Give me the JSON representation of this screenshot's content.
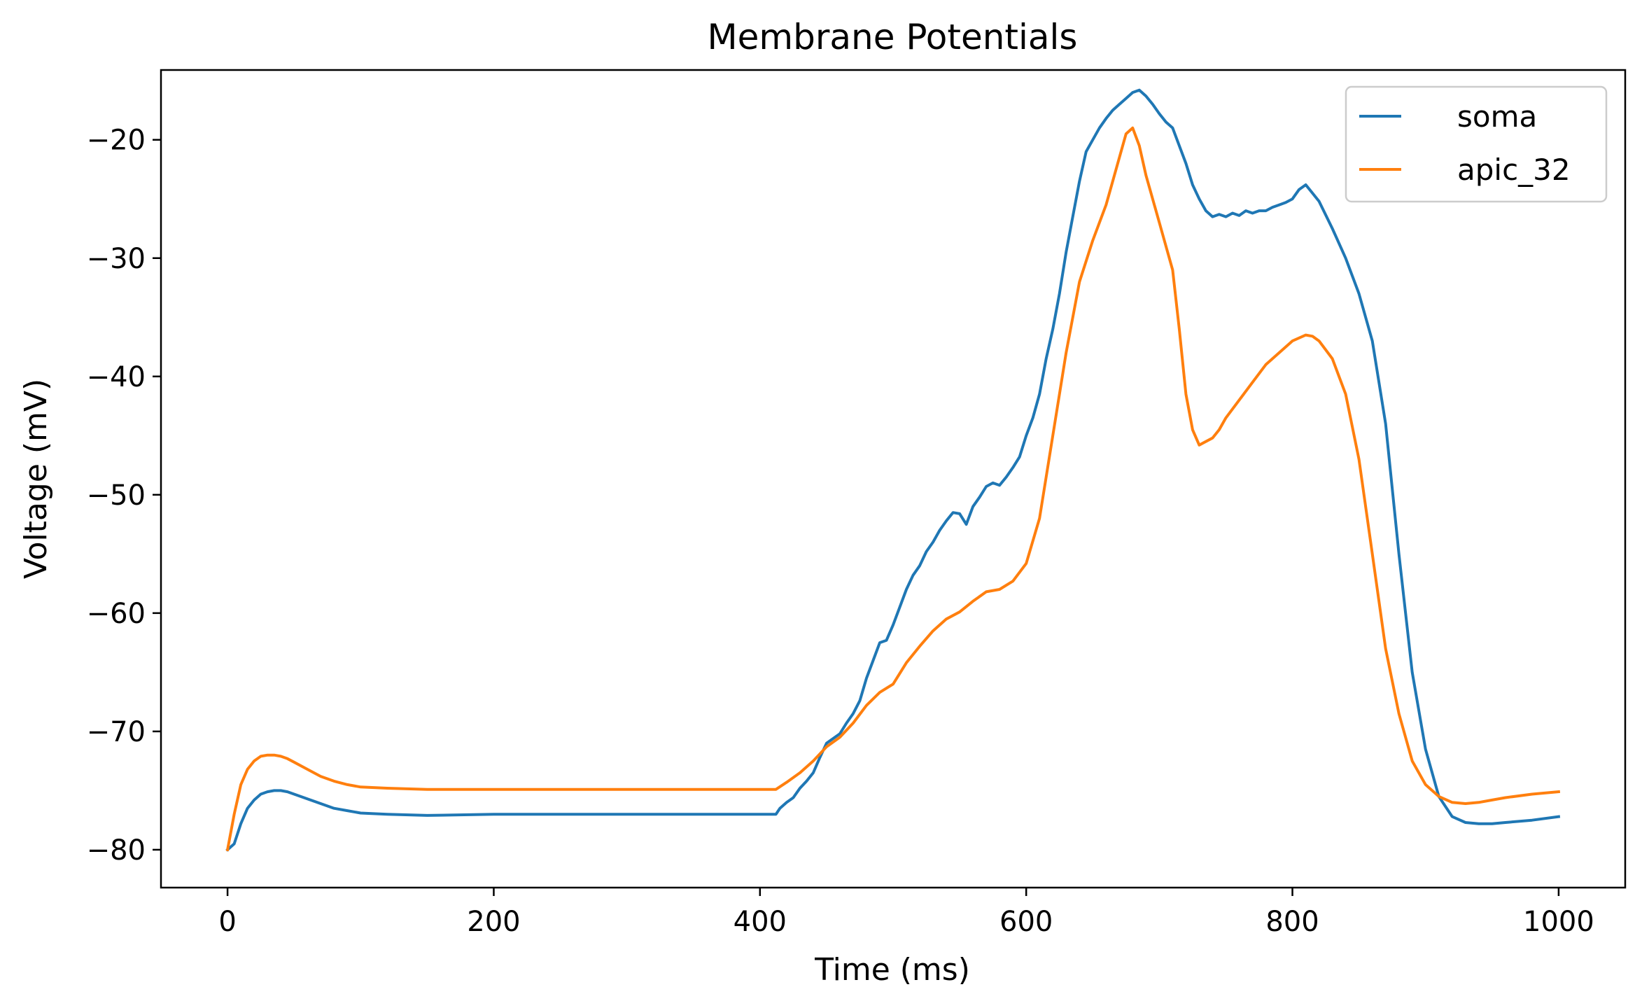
{
  "chart_data": {
    "type": "line",
    "title": "Membrane Potentials",
    "xlabel": "Time (ms)",
    "ylabel": "Voltage (mV)",
    "xlim": [
      -50,
      1050
    ],
    "ylim": [
      -83.2,
      -14.1
    ],
    "xticks": [
      0,
      200,
      400,
      600,
      800,
      1000
    ],
    "xtick_labels": [
      "0",
      "200",
      "400",
      "600",
      "800",
      "1000"
    ],
    "yticks": [
      -80,
      -70,
      -60,
      -50,
      -40,
      -30,
      -20
    ],
    "ytick_labels": [
      "−80",
      "−70",
      "−60",
      "−50",
      "−40",
      "−30",
      "−20"
    ],
    "grid": false,
    "legend_position": "top-right",
    "series": [
      {
        "name": "soma",
        "color": "#1f77b4",
        "x": [
          0,
          5,
          10,
          15,
          20,
          25,
          30,
          35,
          40,
          45,
          50,
          60,
          70,
          80,
          90,
          100,
          120,
          150,
          200,
          250,
          300,
          350,
          400,
          412,
          415,
          420,
          425,
          430,
          435,
          440,
          445,
          450,
          455,
          460,
          465,
          470,
          475,
          480,
          485,
          490,
          495,
          500,
          505,
          510,
          515,
          520,
          525,
          530,
          535,
          540,
          545,
          550,
          555,
          560,
          565,
          570,
          575,
          580,
          585,
          590,
          595,
          600,
          605,
          610,
          615,
          620,
          625,
          630,
          635,
          640,
          645,
          650,
          655,
          660,
          665,
          670,
          675,
          680,
          685,
          690,
          695,
          700,
          705,
          710,
          715,
          720,
          725,
          730,
          735,
          740,
          745,
          750,
          755,
          760,
          765,
          770,
          775,
          780,
          785,
          790,
          795,
          800,
          805,
          810,
          815,
          820,
          830,
          840,
          850,
          860,
          870,
          880,
          890,
          900,
          910,
          920,
          930,
          940,
          950,
          960,
          980,
          1000
        ],
        "values": [
          -80.0,
          -79.5,
          -77.8,
          -76.5,
          -75.8,
          -75.3,
          -75.1,
          -75.0,
          -75.0,
          -75.1,
          -75.3,
          -75.7,
          -76.1,
          -76.5,
          -76.7,
          -76.9,
          -77.0,
          -77.1,
          -77.0,
          -77.0,
          -77.0,
          -77.0,
          -77.0,
          -77.0,
          -76.5,
          -76.0,
          -75.6,
          -74.8,
          -74.2,
          -73.5,
          -72.2,
          -71.0,
          -70.6,
          -70.2,
          -69.3,
          -68.5,
          -67.4,
          -65.5,
          -64.0,
          -62.5,
          -62.3,
          -61.0,
          -59.5,
          -58.0,
          -56.8,
          -56.0,
          -54.8,
          -54.0,
          -53.0,
          -52.2,
          -51.5,
          -51.6,
          -52.5,
          -51.0,
          -50.2,
          -49.3,
          -49.0,
          -49.2,
          -48.5,
          -47.7,
          -46.8,
          -45.0,
          -43.5,
          -41.5,
          -38.5,
          -36.0,
          -33.0,
          -29.5,
          -26.5,
          -23.5,
          -21.0,
          -20.0,
          -19.0,
          -18.2,
          -17.5,
          -17.0,
          -16.5,
          -16.0,
          -15.8,
          -16.3,
          -17.0,
          -17.8,
          -18.5,
          -19.0,
          -20.5,
          -22.0,
          -23.8,
          -25.0,
          -26.0,
          -26.5,
          -26.3,
          -26.5,
          -26.2,
          -26.4,
          -26.0,
          -26.2,
          -26.0,
          -26.0,
          -25.7,
          -25.5,
          -25.3,
          -25.0,
          -24.2,
          -23.8,
          -24.5,
          -25.2,
          -27.5,
          -30.0,
          -33.0,
          -37.0,
          -44.0,
          -55.0,
          -65.0,
          -71.5,
          -75.5,
          -77.2,
          -77.7,
          -77.8,
          -77.8,
          -77.7,
          -77.5,
          -77.2
        ]
      },
      {
        "name": "apic_32",
        "color": "#ff7f0e",
        "x": [
          0,
          5,
          10,
          15,
          20,
          25,
          30,
          35,
          40,
          45,
          50,
          60,
          70,
          80,
          90,
          100,
          120,
          150,
          200,
          250,
          300,
          350,
          400,
          412,
          420,
          430,
          440,
          450,
          460,
          470,
          480,
          490,
          500,
          510,
          520,
          530,
          540,
          550,
          560,
          570,
          580,
          590,
          600,
          610,
          620,
          630,
          640,
          650,
          660,
          665,
          670,
          675,
          680,
          685,
          690,
          700,
          710,
          715,
          720,
          725,
          730,
          740,
          745,
          750,
          760,
          770,
          780,
          790,
          800,
          810,
          815,
          820,
          830,
          840,
          850,
          860,
          870,
          880,
          890,
          900,
          910,
          920,
          930,
          940,
          950,
          960,
          980,
          1000
        ],
        "values": [
          -80.0,
          -77.0,
          -74.5,
          -73.2,
          -72.5,
          -72.1,
          -72.0,
          -72.0,
          -72.1,
          -72.3,
          -72.6,
          -73.2,
          -73.8,
          -74.2,
          -74.5,
          -74.7,
          -74.8,
          -74.9,
          -74.9,
          -74.9,
          -74.9,
          -74.9,
          -74.9,
          -74.9,
          -74.3,
          -73.5,
          -72.5,
          -71.3,
          -70.5,
          -69.3,
          -67.8,
          -66.7,
          -66.0,
          -64.2,
          -62.8,
          -61.5,
          -60.5,
          -59.9,
          -59.0,
          -58.2,
          -58.0,
          -57.3,
          -55.8,
          -52.0,
          -45.0,
          -38.0,
          -32.0,
          -28.5,
          -25.5,
          -23.5,
          -21.5,
          -19.5,
          -19.0,
          -20.5,
          -23.0,
          -27.0,
          -31.0,
          -36.0,
          -41.5,
          -44.5,
          -45.8,
          -45.2,
          -44.5,
          -43.5,
          -42.0,
          -40.5,
          -39.0,
          -38.0,
          -37.0,
          -36.5,
          -36.6,
          -37.0,
          -38.5,
          -41.5,
          -47.0,
          -55.0,
          -63.0,
          -68.5,
          -72.5,
          -74.5,
          -75.5,
          -76.0,
          -76.1,
          -76.0,
          -75.8,
          -75.6,
          -75.3,
          -75.1
        ]
      }
    ]
  }
}
